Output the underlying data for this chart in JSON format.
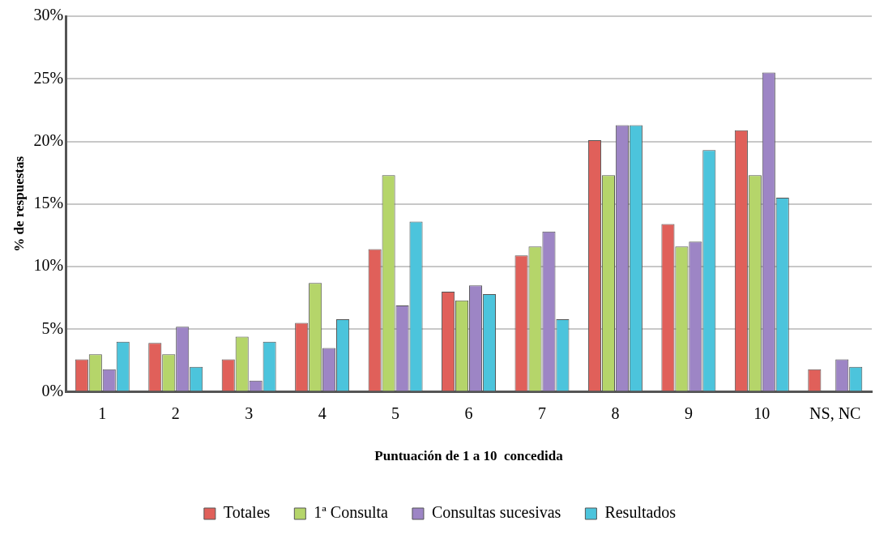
{
  "chart_data": {
    "type": "bar",
    "xlabel": "Puntuación de 1 a 10  concedida",
    "ylabel": "% de respuestas",
    "categories": [
      "1",
      "2",
      "3",
      "4",
      "5",
      "6",
      "7",
      "8",
      "9",
      "10",
      "NS, NC"
    ],
    "series": [
      {
        "name": "Totales",
        "color": "#e0605a",
        "values": [
          2.6,
          3.9,
          2.6,
          5.5,
          11.4,
          8.0,
          10.9,
          20.1,
          13.4,
          20.9,
          1.8
        ]
      },
      {
        "name": "1ª Consulta",
        "color": "#b5d56a",
        "values": [
          3.0,
          3.0,
          4.4,
          8.7,
          17.3,
          7.3,
          11.6,
          17.3,
          11.6,
          17.3,
          0
        ]
      },
      {
        "name": "Consultas sucesivas",
        "color": "#9d85c5",
        "values": [
          1.8,
          5.2,
          0.9,
          3.5,
          6.9,
          8.5,
          12.8,
          21.3,
          12.0,
          25.5,
          2.6
        ]
      },
      {
        "name": "Resultados",
        "color": "#4cc4dc",
        "values": [
          4.0,
          2.0,
          4.0,
          5.8,
          13.6,
          7.8,
          5.8,
          21.3,
          19.3,
          15.5,
          2.0
        ]
      }
    ],
    "ylim": [
      0,
      30
    ],
    "yticks": [
      {
        "value": 0,
        "label": "0%"
      },
      {
        "value": 5,
        "label": "5%"
      },
      {
        "value": 10,
        "label": "10%"
      },
      {
        "value": 15,
        "label": "15%"
      },
      {
        "value": 20,
        "label": "20%"
      },
      {
        "value": 25,
        "label": "25%"
      },
      {
        "value": 30,
        "label": "30%"
      }
    ],
    "grid": "y",
    "legend": "bottom"
  }
}
